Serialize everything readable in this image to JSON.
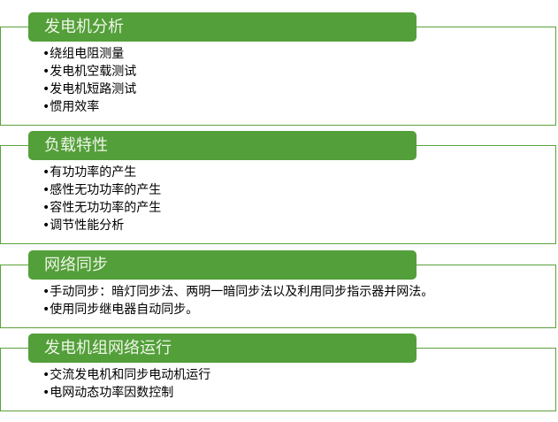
{
  "colors": {
    "header": "#539f39",
    "border": "#5aa23c",
    "header_text": "#eef5e8"
  },
  "sections": [
    {
      "title": "发电机分析",
      "items": [
        "绕组电阻测量",
        "发电机空载测试",
        "发电机短路测试",
        "惯用效率"
      ]
    },
    {
      "title": "负载特性",
      "items": [
        "有功功率的产生",
        "感性无功功率的产生",
        "容性无功功率的产生",
        "调节性能分析"
      ]
    },
    {
      "title": "网络同步",
      "items": [
        "手动同步：暗灯同步法、两明一暗同步法以及利用同步指示器并网法。",
        "使用同步继电器自动同步。"
      ]
    },
    {
      "title": "发电机组网络运行",
      "items": [
        "交流发电机和同步电动机运行",
        "电网动态功率因数控制"
      ]
    }
  ]
}
